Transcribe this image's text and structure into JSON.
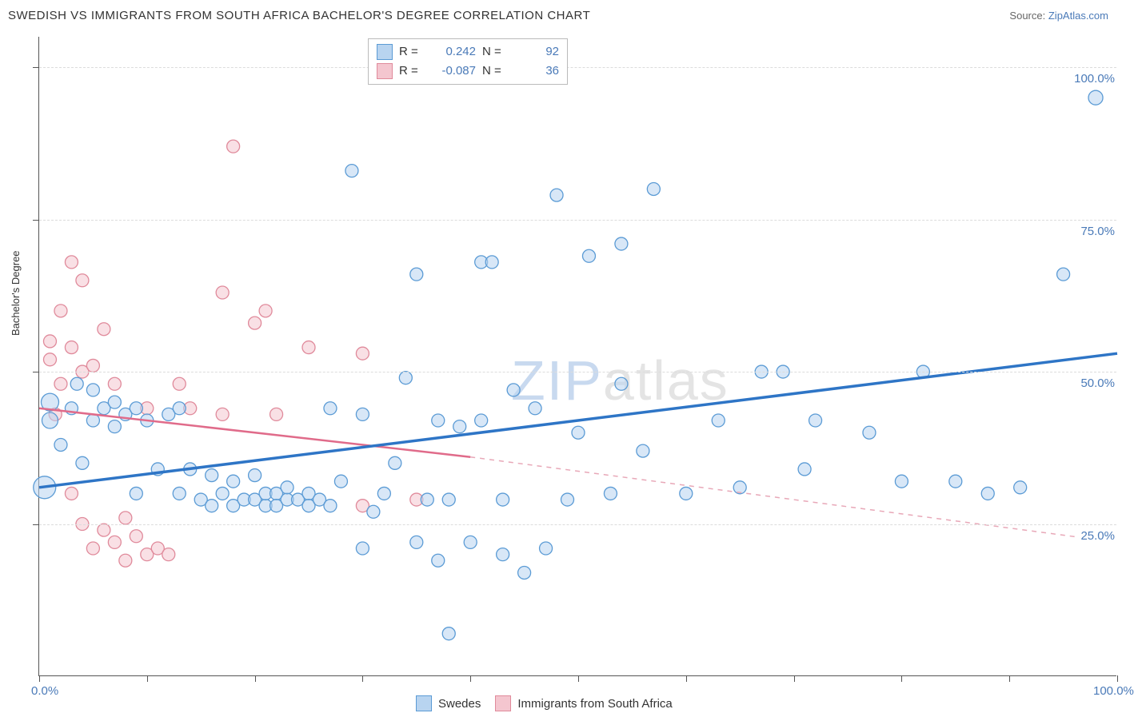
{
  "header": {
    "title": "SWEDISH VS IMMIGRANTS FROM SOUTH AFRICA BACHELOR'S DEGREE CORRELATION CHART",
    "source_label": "Source:",
    "source_link": "ZipAtlas.com"
  },
  "axes": {
    "ylabel": "Bachelor's Degree",
    "x_min": 0,
    "x_max": 100,
    "y_min": 0,
    "y_max": 105,
    "y_gridlines": [
      25,
      50,
      75,
      100
    ],
    "y_tick_labels": [
      "25.0%",
      "50.0%",
      "75.0%",
      "100.0%"
    ],
    "x_ticks": [
      0,
      10,
      20,
      30,
      40,
      50,
      60,
      70,
      80,
      90,
      100
    ],
    "x_tick_labels": {
      "0": "0.0%",
      "100": "100.0%"
    }
  },
  "colors": {
    "series1_fill": "#b8d4f0",
    "series1_stroke": "#5b9bd5",
    "series2_fill": "#f4c6cf",
    "series2_stroke": "#e08a9b",
    "line1": "#2e75c6",
    "line2_solid": "#e06b8a",
    "line2_dash": "#e8a8b8",
    "grid": "#dcdcdc",
    "axis": "#555555",
    "text_link": "#4a7ab8"
  },
  "legend_top": {
    "rows": [
      {
        "swatch": 1,
        "r_label": "R =",
        "r_value": "0.242",
        "n_label": "N =",
        "n_value": "92"
      },
      {
        "swatch": 2,
        "r_label": "R =",
        "r_value": "-0.087",
        "n_label": "N =",
        "n_value": "36"
      }
    ]
  },
  "legend_bottom": {
    "items": [
      {
        "swatch": 1,
        "label": "Swedes"
      },
      {
        "swatch": 2,
        "label": "Immigrants from South Africa"
      }
    ]
  },
  "watermark": {
    "z": "ZIP",
    "rest": "atlas"
  },
  "trend_lines": {
    "line1": {
      "x1": 0,
      "y1": 31,
      "x2": 100,
      "y2": 53
    },
    "line2_solid": {
      "x1": 0,
      "y1": 44,
      "x2": 40,
      "y2": 36
    },
    "line2_dash": {
      "x1": 40,
      "y1": 36,
      "x2": 100,
      "y2": 22
    }
  },
  "series1": {
    "name": "Swedes",
    "points": [
      {
        "x": 1,
        "y": 45,
        "r": 11
      },
      {
        "x": 1,
        "y": 42,
        "r": 10
      },
      {
        "x": 0.5,
        "y": 31,
        "r": 14
      },
      {
        "x": 2,
        "y": 38,
        "r": 8
      },
      {
        "x": 3,
        "y": 44,
        "r": 8
      },
      {
        "x": 3.5,
        "y": 48,
        "r": 8
      },
      {
        "x": 4,
        "y": 35,
        "r": 8
      },
      {
        "x": 5,
        "y": 47,
        "r": 8
      },
      {
        "x": 5,
        "y": 42,
        "r": 8
      },
      {
        "x": 6,
        "y": 44,
        "r": 8
      },
      {
        "x": 7,
        "y": 45,
        "r": 8
      },
      {
        "x": 7,
        "y": 41,
        "r": 8
      },
      {
        "x": 8,
        "y": 43,
        "r": 8
      },
      {
        "x": 9,
        "y": 44,
        "r": 8
      },
      {
        "x": 9,
        "y": 30,
        "r": 8
      },
      {
        "x": 10,
        "y": 42,
        "r": 8
      },
      {
        "x": 11,
        "y": 34,
        "r": 8
      },
      {
        "x": 12,
        "y": 43,
        "r": 8
      },
      {
        "x": 13,
        "y": 44,
        "r": 8
      },
      {
        "x": 13,
        "y": 30,
        "r": 8
      },
      {
        "x": 14,
        "y": 34,
        "r": 8
      },
      {
        "x": 15,
        "y": 29,
        "r": 8
      },
      {
        "x": 16,
        "y": 28,
        "r": 8
      },
      {
        "x": 16,
        "y": 33,
        "r": 8
      },
      {
        "x": 17,
        "y": 30,
        "r": 8
      },
      {
        "x": 18,
        "y": 32,
        "r": 8
      },
      {
        "x": 18,
        "y": 28,
        "r": 8
      },
      {
        "x": 19,
        "y": 29,
        "r": 8
      },
      {
        "x": 20,
        "y": 29,
        "r": 8
      },
      {
        "x": 20,
        "y": 33,
        "r": 8
      },
      {
        "x": 21,
        "y": 28,
        "r": 8
      },
      {
        "x": 21,
        "y": 30,
        "r": 8
      },
      {
        "x": 22,
        "y": 30,
        "r": 8
      },
      {
        "x": 22,
        "y": 28,
        "r": 8
      },
      {
        "x": 23,
        "y": 29,
        "r": 8
      },
      {
        "x": 23,
        "y": 31,
        "r": 8
      },
      {
        "x": 24,
        "y": 29,
        "r": 8
      },
      {
        "x": 25,
        "y": 30,
        "r": 8
      },
      {
        "x": 25,
        "y": 28,
        "r": 8
      },
      {
        "x": 26,
        "y": 29,
        "r": 8
      },
      {
        "x": 27,
        "y": 28,
        "r": 8
      },
      {
        "x": 27,
        "y": 44,
        "r": 8
      },
      {
        "x": 28,
        "y": 32,
        "r": 8
      },
      {
        "x": 29,
        "y": 83,
        "r": 8
      },
      {
        "x": 30,
        "y": 21,
        "r": 8
      },
      {
        "x": 30,
        "y": 43,
        "r": 8
      },
      {
        "x": 31,
        "y": 27,
        "r": 8
      },
      {
        "x": 32,
        "y": 30,
        "r": 8
      },
      {
        "x": 33,
        "y": 35,
        "r": 8
      },
      {
        "x": 34,
        "y": 49,
        "r": 8
      },
      {
        "x": 35,
        "y": 22,
        "r": 8
      },
      {
        "x": 35,
        "y": 66,
        "r": 8
      },
      {
        "x": 36,
        "y": 29,
        "r": 8
      },
      {
        "x": 37,
        "y": 19,
        "r": 8
      },
      {
        "x": 37,
        "y": 42,
        "r": 8
      },
      {
        "x": 38,
        "y": 7,
        "r": 8
      },
      {
        "x": 38,
        "y": 29,
        "r": 8
      },
      {
        "x": 39,
        "y": 41,
        "r": 8
      },
      {
        "x": 40,
        "y": 22,
        "r": 8
      },
      {
        "x": 41,
        "y": 42,
        "r": 8
      },
      {
        "x": 41,
        "y": 68,
        "r": 8
      },
      {
        "x": 42,
        "y": 68,
        "r": 8
      },
      {
        "x": 43,
        "y": 29,
        "r": 8
      },
      {
        "x": 43,
        "y": 20,
        "r": 8
      },
      {
        "x": 44,
        "y": 47,
        "r": 8
      },
      {
        "x": 45,
        "y": 17,
        "r": 8
      },
      {
        "x": 46,
        "y": 44,
        "r": 8
      },
      {
        "x": 47,
        "y": 21,
        "r": 8
      },
      {
        "x": 48,
        "y": 79,
        "r": 8
      },
      {
        "x": 49,
        "y": 29,
        "r": 8
      },
      {
        "x": 50,
        "y": 40,
        "r": 8
      },
      {
        "x": 51,
        "y": 69,
        "r": 8
      },
      {
        "x": 53,
        "y": 30,
        "r": 8
      },
      {
        "x": 54,
        "y": 48,
        "r": 8
      },
      {
        "x": 54,
        "y": 71,
        "r": 8
      },
      {
        "x": 56,
        "y": 37,
        "r": 8
      },
      {
        "x": 57,
        "y": 80,
        "r": 8
      },
      {
        "x": 60,
        "y": 30,
        "r": 8
      },
      {
        "x": 63,
        "y": 42,
        "r": 8
      },
      {
        "x": 65,
        "y": 31,
        "r": 8
      },
      {
        "x": 67,
        "y": 50,
        "r": 8
      },
      {
        "x": 69,
        "y": 50,
        "r": 8
      },
      {
        "x": 71,
        "y": 34,
        "r": 8
      },
      {
        "x": 72,
        "y": 42,
        "r": 8
      },
      {
        "x": 77,
        "y": 40,
        "r": 8
      },
      {
        "x": 80,
        "y": 32,
        "r": 8
      },
      {
        "x": 82,
        "y": 50,
        "r": 8
      },
      {
        "x": 85,
        "y": 32,
        "r": 8
      },
      {
        "x": 88,
        "y": 30,
        "r": 8
      },
      {
        "x": 91,
        "y": 31,
        "r": 8
      },
      {
        "x": 95,
        "y": 66,
        "r": 8
      },
      {
        "x": 98,
        "y": 95,
        "r": 9
      }
    ]
  },
  "series2": {
    "name": "Immigrants from South Africa",
    "points": [
      {
        "x": 1,
        "y": 55,
        "r": 8
      },
      {
        "x": 1,
        "y": 52,
        "r": 8
      },
      {
        "x": 1.5,
        "y": 43,
        "r": 8
      },
      {
        "x": 2,
        "y": 60,
        "r": 8
      },
      {
        "x": 2,
        "y": 48,
        "r": 8
      },
      {
        "x": 3,
        "y": 68,
        "r": 8
      },
      {
        "x": 3,
        "y": 54,
        "r": 8
      },
      {
        "x": 3,
        "y": 30,
        "r": 8
      },
      {
        "x": 4,
        "y": 65,
        "r": 8
      },
      {
        "x": 4,
        "y": 50,
        "r": 8
      },
      {
        "x": 4,
        "y": 25,
        "r": 8
      },
      {
        "x": 5,
        "y": 51,
        "r": 8
      },
      {
        "x": 5,
        "y": 21,
        "r": 8
      },
      {
        "x": 6,
        "y": 24,
        "r": 8
      },
      {
        "x": 6,
        "y": 57,
        "r": 8
      },
      {
        "x": 7,
        "y": 22,
        "r": 8
      },
      {
        "x": 7,
        "y": 48,
        "r": 8
      },
      {
        "x": 8,
        "y": 19,
        "r": 8
      },
      {
        "x": 8,
        "y": 26,
        "r": 8
      },
      {
        "x": 9,
        "y": 23,
        "r": 8
      },
      {
        "x": 10,
        "y": 20,
        "r": 8
      },
      {
        "x": 10,
        "y": 44,
        "r": 8
      },
      {
        "x": 11,
        "y": 21,
        "r": 8
      },
      {
        "x": 12,
        "y": 20,
        "r": 8
      },
      {
        "x": 13,
        "y": 48,
        "r": 8
      },
      {
        "x": 14,
        "y": 44,
        "r": 8
      },
      {
        "x": 17,
        "y": 63,
        "r": 8
      },
      {
        "x": 17,
        "y": 43,
        "r": 8
      },
      {
        "x": 18,
        "y": 87,
        "r": 8
      },
      {
        "x": 20,
        "y": 58,
        "r": 8
      },
      {
        "x": 21,
        "y": 60,
        "r": 8
      },
      {
        "x": 22,
        "y": 43,
        "r": 8
      },
      {
        "x": 25,
        "y": 54,
        "r": 8
      },
      {
        "x": 30,
        "y": 28,
        "r": 8
      },
      {
        "x": 30,
        "y": 53,
        "r": 8
      },
      {
        "x": 35,
        "y": 29,
        "r": 8
      }
    ]
  }
}
